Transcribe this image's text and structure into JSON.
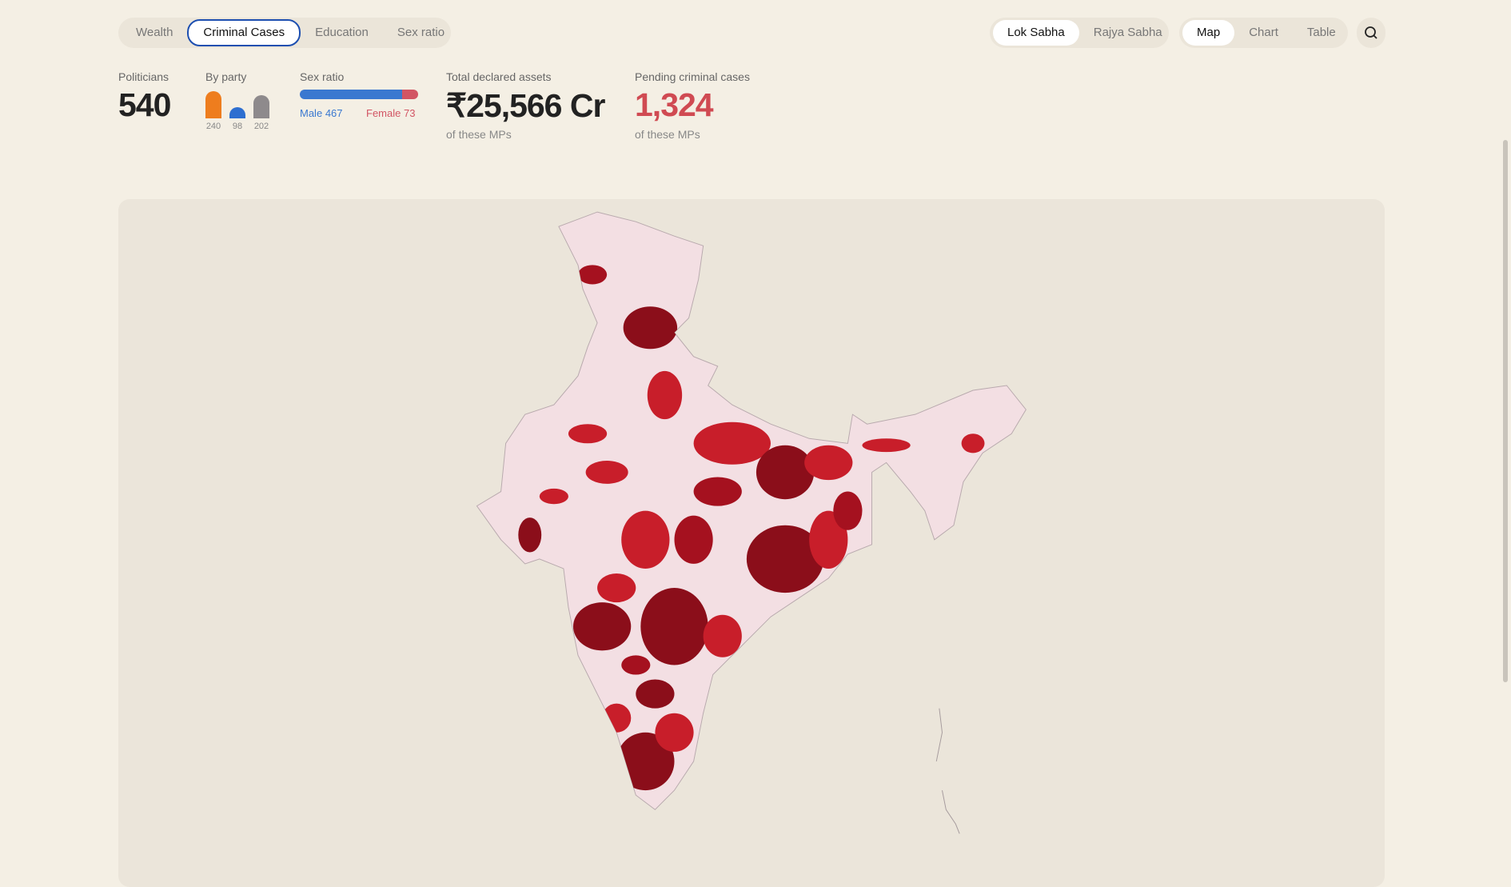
{
  "tabs": [
    "Wealth",
    "Criminal Cases",
    "Education",
    "Sex ratio"
  ],
  "house_toggle": [
    "Lok Sabha",
    "Rajya Sabha"
  ],
  "view_toggle": [
    "Map",
    "Chart",
    "Table"
  ],
  "stats": {
    "politicians": {
      "label": "Politicians",
      "value": 540
    },
    "by_party": {
      "label": "By party",
      "values": [
        240,
        98,
        202
      ],
      "colors": [
        "#ee7d1e",
        "#2e6fd0",
        "#8e8a8c"
      ]
    },
    "sex_ratio": {
      "label": "Sex ratio",
      "male_label": "Male",
      "male": 467,
      "female_label": "Female",
      "female": 73,
      "male_color": "#3a78d0",
      "female_color": "#d25564"
    },
    "assets": {
      "label": "Total declared assets",
      "value": "₹25,566 Cr",
      "note": "of these MPs"
    },
    "criminal": {
      "label": "Pending criminal cases",
      "value": "1,324",
      "note": "of these MPs"
    }
  }
}
